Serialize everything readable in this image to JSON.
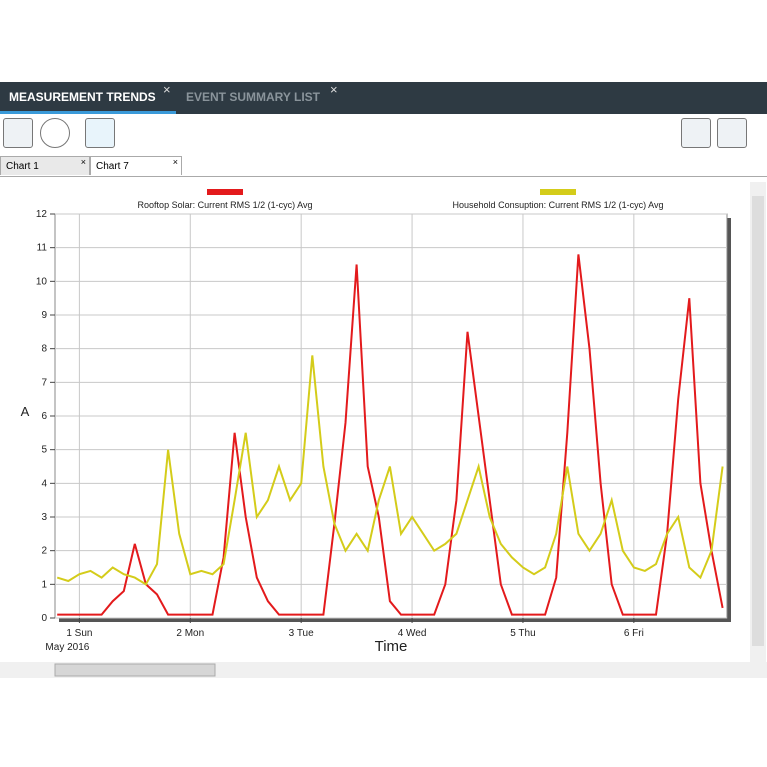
{
  "tabs": [
    "MEASUREMENT TRENDS",
    "EVENT SUMMARY LIST"
  ],
  "chart_tabs": [
    "Chart 1",
    "Chart 7"
  ],
  "chart_data": {
    "type": "line",
    "x_label": "Time",
    "x_sublabel": "May 2016",
    "y_label": "A",
    "x": [
      0.8,
      0.9,
      1.0,
      1.1,
      1.2,
      1.3,
      1.4,
      1.5,
      1.6,
      1.7,
      1.8,
      1.9,
      2.0,
      2.1,
      2.2,
      2.3,
      2.4,
      2.5,
      2.6,
      2.7,
      2.8,
      2.9,
      3.0,
      3.1,
      3.2,
      3.3,
      3.4,
      3.5,
      3.6,
      3.7,
      3.8,
      3.9,
      4.0,
      4.1,
      4.2,
      4.3,
      4.4,
      4.5,
      4.6,
      4.7,
      4.8,
      4.9,
      5.0,
      5.1,
      5.2,
      5.3,
      5.4,
      5.5,
      5.6,
      5.7,
      5.8,
      5.9,
      6.0,
      6.1,
      6.2,
      6.3,
      6.4,
      6.5,
      6.6,
      6.7,
      6.8
    ],
    "series": [
      {
        "name": "Rooftop Solar: Current RMS 1/2 (1-cyc) Avg",
        "color": "#e31a1c",
        "values": [
          0.1,
          0.1,
          0.1,
          0.1,
          0.1,
          0.5,
          0.8,
          2.2,
          1.0,
          0.7,
          0.1,
          0.1,
          0.1,
          0.1,
          0.1,
          1.8,
          5.5,
          3.0,
          1.2,
          0.5,
          0.1,
          0.1,
          0.1,
          0.1,
          0.1,
          2.8,
          5.8,
          10.5,
          4.5,
          3.0,
          0.5,
          0.1,
          0.1,
          0.1,
          0.1,
          1.0,
          3.5,
          8.5,
          6.0,
          3.5,
          1.0,
          0.1,
          0.1,
          0.1,
          0.1,
          1.2,
          5.5,
          10.8,
          8.0,
          4.0,
          1.0,
          0.1,
          0.1,
          0.1,
          0.1,
          2.5,
          6.5,
          9.5,
          4.0,
          2.0,
          0.3
        ]
      },
      {
        "name": "Household Consuption: Current RMS 1/2 (1-cyc) Avg",
        "color": "#d4cc1a",
        "values": [
          1.2,
          1.1,
          1.3,
          1.4,
          1.2,
          1.5,
          1.3,
          1.2,
          1.0,
          1.6,
          5.0,
          2.5,
          1.3,
          1.4,
          1.3,
          1.6,
          3.5,
          5.5,
          3.0,
          3.5,
          4.5,
          3.5,
          4.0,
          7.8,
          4.5,
          2.8,
          2.0,
          2.5,
          2.0,
          3.5,
          4.5,
          2.5,
          3.0,
          2.5,
          2.0,
          2.2,
          2.5,
          3.5,
          4.5,
          3.0,
          2.2,
          1.8,
          1.5,
          1.3,
          1.5,
          2.5,
          4.5,
          2.5,
          2.0,
          2.5,
          3.5,
          2.0,
          1.5,
          1.4,
          1.6,
          2.5,
          3.0,
          1.5,
          1.2,
          2.0,
          4.5
        ]
      }
    ],
    "xlim": [
      0.78,
      6.84
    ],
    "xticks": [
      {
        "value": 1,
        "label": "1 Sun"
      },
      {
        "value": 2,
        "label": "2 Mon"
      },
      {
        "value": 3,
        "label": "3 Tue"
      },
      {
        "value": 4,
        "label": "4 Wed"
      },
      {
        "value": 5,
        "label": "5 Thu"
      },
      {
        "value": 6,
        "label": "6 Fri"
      }
    ],
    "ylim": [
      0,
      12
    ],
    "yticks": [
      0,
      1,
      2,
      3,
      4,
      5,
      6,
      7,
      8,
      9,
      10,
      11,
      12
    ],
    "grid": true
  }
}
